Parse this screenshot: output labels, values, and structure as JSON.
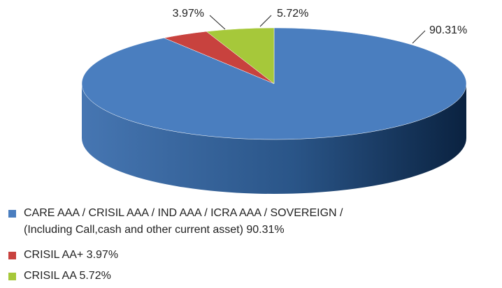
{
  "chart_data": {
    "type": "pie3d",
    "categories": [
      "CARE AAA / CRISIL AAA / IND AAA / ICRA AAA / SOVEREIGN /\n(Including Call,cash and other current asset)  90.31%",
      "CRISIL AA+  3.97%",
      "CRISIL AA  5.72%"
    ],
    "values": [
      90.31,
      3.97,
      5.72
    ],
    "value_labels": [
      "90.31%",
      "3.97%",
      "5.72%"
    ],
    "colors": [
      "#4a7ebf",
      "#c8423e",
      "#a6c83a"
    ]
  }
}
